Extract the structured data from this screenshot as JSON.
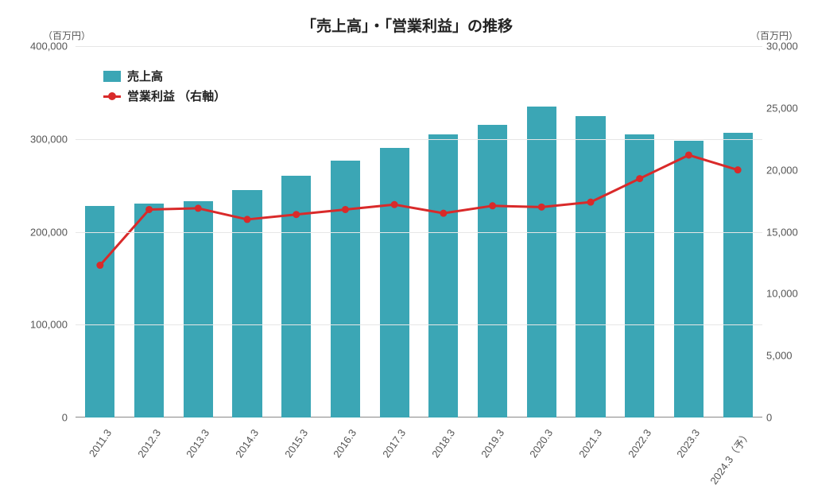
{
  "chart": {
    "type": "bar+line-dual-axis",
    "title": "「売上高」・「営業利益」の推移",
    "title_fontsize": 19,
    "unit_label_left": "（百万円）",
    "unit_label_right": "（百万円）",
    "unit_fontsize": 12,
    "background_color": "#ffffff",
    "grid_color": "#e6e6e6",
    "axis_color": "#888888",
    "text_color": "#555555",
    "categories": [
      "2011.3",
      "2012.3",
      "2013.3",
      "2014.3",
      "2015.3",
      "2016.3",
      "2017.3",
      "2018.3",
      "2019.3",
      "2020.3",
      "2021.3",
      "2022.3",
      "2023.3",
      "2024.3（予）"
    ],
    "x_label_fontsize": 13,
    "x_label_rotation_deg": -55,
    "bars": {
      "label": "売上高",
      "color": "#3ba6b5",
      "values": [
        228000,
        230000,
        233000,
        245000,
        260000,
        277000,
        290000,
        305000,
        315000,
        335000,
        325000,
        305000,
        298000,
        307000
      ],
      "width_ratio": 0.6
    },
    "line": {
      "label": "営業利益 （右軸）",
      "color": "#d92a2a",
      "values": [
        12300,
        16800,
        16900,
        16000,
        16400,
        16800,
        17200,
        16500,
        17100,
        17000,
        17400,
        19300,
        21200,
        20000
      ],
      "marker": "circle",
      "marker_size": 9,
      "line_width": 3
    },
    "y_left": {
      "min": 0,
      "max": 400000,
      "ticks": [
        0,
        100000,
        200000,
        300000,
        400000
      ],
      "tick_labels": [
        "0",
        "100,000",
        "200,000",
        "300,000",
        "400,000"
      ],
      "label_fontsize": 13
    },
    "y_right": {
      "min": 0,
      "max": 30000,
      "ticks": [
        0,
        5000,
        10000,
        15000,
        20000,
        25000,
        30000
      ],
      "tick_labels": [
        "0",
        "5,000",
        "10,000",
        "15,000",
        "20,000",
        "25,000",
        "30,000"
      ],
      "label_fontsize": 13
    },
    "legend": {
      "position": "upper-left-inside",
      "fontsize": 15
    }
  }
}
